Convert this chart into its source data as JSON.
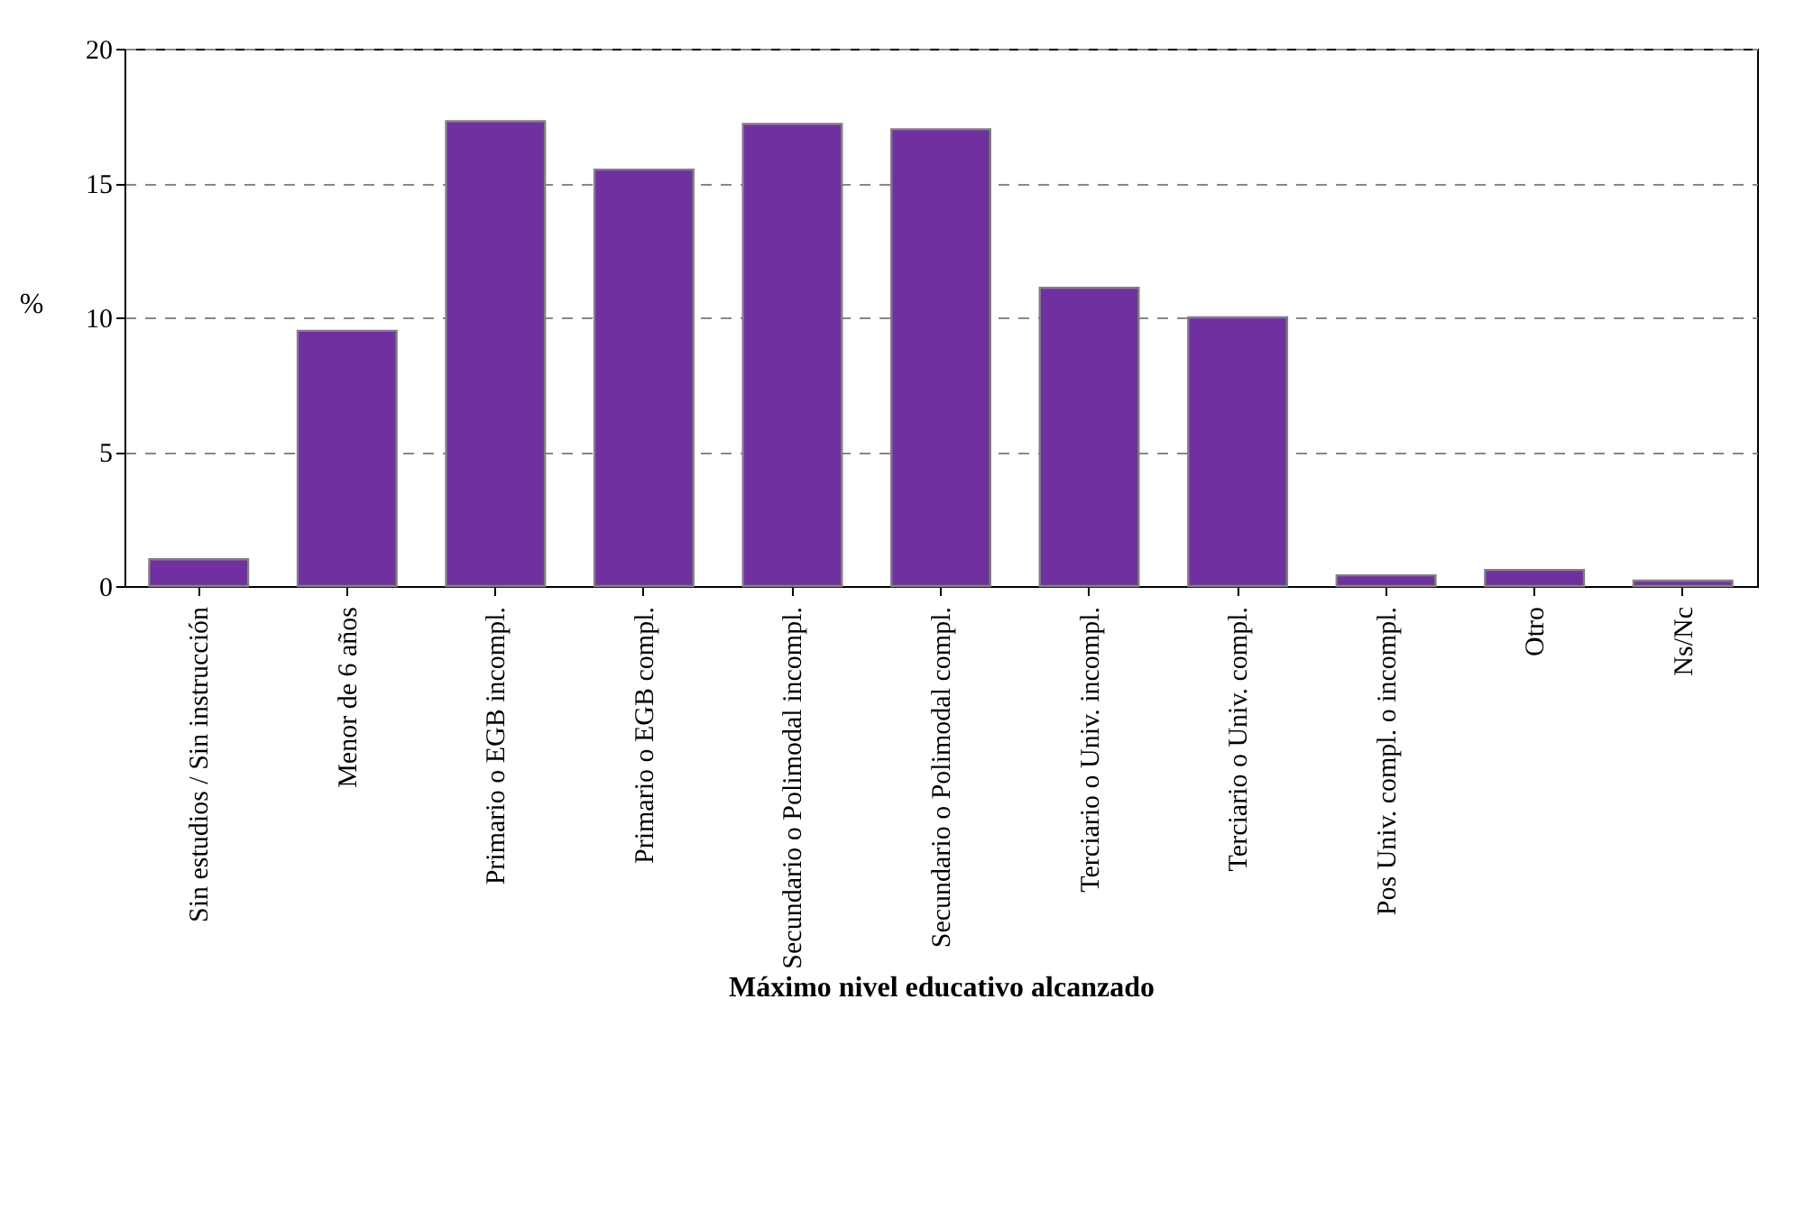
{
  "chart_data": {
    "type": "bar",
    "xlabel": "Máximo nivel educativo alcanzado",
    "ylabel": "%",
    "categories": [
      "Sin estudios / Sin instrucción",
      "Menor de 6 años",
      "Primario o EGB incompl.",
      "Primario o EGB compl.",
      "Secundario o Polimodal incompl.",
      "Secundario o Polimodal compl.",
      "Terciario o Univ. incompl.",
      "Terciario o Univ. compl.",
      "Pos Univ. compl. o incompl.",
      "Otro",
      "Ns/Nc"
    ],
    "values": [
      1.0,
      9.5,
      17.3,
      15.5,
      17.2,
      17.0,
      11.1,
      10.0,
      0.4,
      0.6,
      0.2
    ],
    "color": "#7030a0",
    "ylim": [
      0,
      20
    ],
    "yticks": [
      0,
      5,
      10,
      15,
      20
    ],
    "grid": "y"
  }
}
